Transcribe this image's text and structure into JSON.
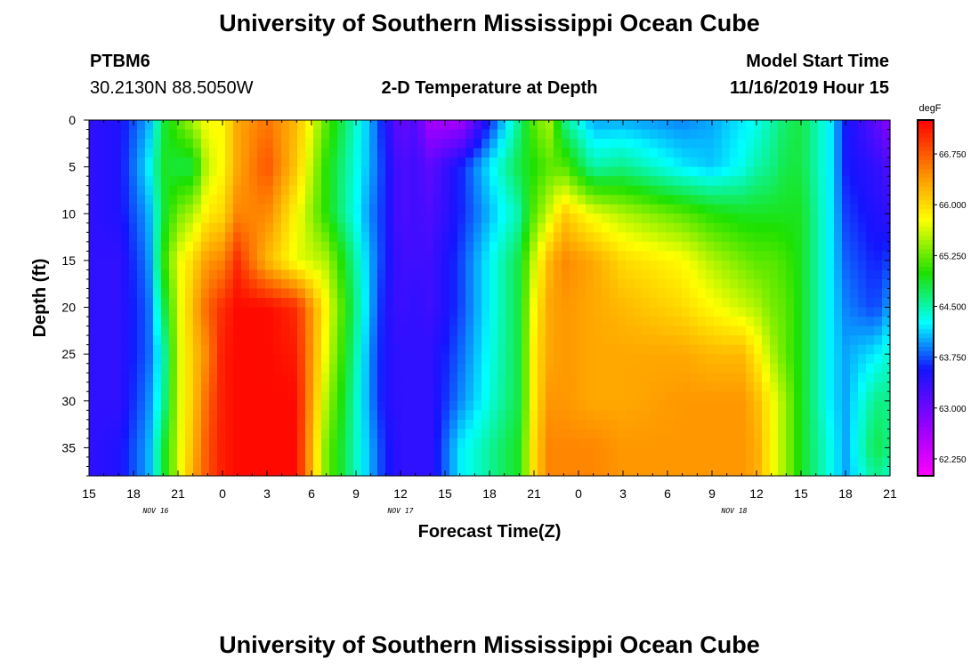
{
  "header": {
    "title": "University of Southern Mississippi Ocean Cube",
    "station": "PTBM6",
    "location": "30.2130N 88.5050W",
    "chart_title": "2-D Temperature at Depth",
    "model_label": "Model Start Time",
    "model_time": "11/16/2019 Hour 15"
  },
  "footer": {
    "title": "University of Southern Mississippi Ocean Cube"
  },
  "chart_data": {
    "type": "heatmap",
    "title": "2-D Temperature at Depth",
    "xlabel": "Forecast Time(Z)",
    "ylabel": "Depth (ft)",
    "x_tick_labels": [
      "15",
      "18",
      "21",
      "0",
      "3",
      "6",
      "9",
      "12",
      "15",
      "18",
      "21",
      "0",
      "3",
      "6",
      "9",
      "12",
      "15",
      "18",
      "21"
    ],
    "x_range_hours": [
      0,
      54
    ],
    "date_labels": [
      {
        "label": "NOV 16",
        "hour": 4.5
      },
      {
        "label": "NOV 17",
        "hour": 21
      },
      {
        "label": "NOV 18",
        "hour": 43.5
      }
    ],
    "y_ticks": [
      0,
      5,
      10,
      15,
      20,
      25,
      30,
      35
    ],
    "y_tick_labels": [
      "0",
      "5",
      "10",
      "15",
      "20",
      "25",
      "30",
      "35"
    ],
    "ylim": [
      0,
      38
    ],
    "colorbar": {
      "unit": "degF",
      "range": [
        62.0,
        67.25
      ],
      "tick_values": [
        66.75,
        66.0,
        65.25,
        64.5,
        63.75,
        63.0,
        62.25
      ],
      "tick_labels": [
        "66.750",
        "66.000",
        "65.250",
        "64.500",
        "63.750",
        "63.000",
        "62.250"
      ]
    },
    "temperature_profile": {
      "hours": [
        0,
        2,
        4,
        5,
        6,
        7,
        8,
        9,
        10,
        12,
        14,
        16,
        19,
        20,
        21,
        22,
        23,
        25,
        29,
        30,
        31,
        32,
        34,
        36,
        40,
        42,
        44,
        45,
        46,
        47,
        48,
        50,
        51,
        53,
        54
      ],
      "depths": [
        0,
        5,
        10,
        15,
        20,
        25,
        30,
        35,
        38
      ],
      "values_degF": [
        [
          63.4,
          63.4,
          63.4,
          63.4,
          63.4,
          63.4,
          63.4,
          63.4,
          63.4
        ],
        [
          63.5,
          63.5,
          63.5,
          63.4,
          63.4,
          63.4,
          63.4,
          63.5,
          63.5
        ],
        [
          64.0,
          64.2,
          64.0,
          63.9,
          63.8,
          63.8,
          63.9,
          64.0,
          64.0
        ],
        [
          64.8,
          64.9,
          64.8,
          65.0,
          64.7,
          64.4,
          64.5,
          64.8,
          64.8
        ],
        [
          65.2,
          64.8,
          65.3,
          65.7,
          65.6,
          65.6,
          65.6,
          65.6,
          65.6
        ],
        [
          65.5,
          64.8,
          65.5,
          66.0,
          66.2,
          66.1,
          66.1,
          66.2,
          66.3
        ],
        [
          65.8,
          65.6,
          65.9,
          66.4,
          66.7,
          66.5,
          66.7,
          66.8,
          66.8
        ],
        [
          65.8,
          65.8,
          66.0,
          66.5,
          67.0,
          67.1,
          67.1,
          67.1,
          67.1
        ],
        [
          66.3,
          66.3,
          66.5,
          67.0,
          67.2,
          67.2,
          67.2,
          67.2,
          67.2
        ],
        [
          66.6,
          66.8,
          66.5,
          66.2,
          67.2,
          67.2,
          67.2,
          67.2,
          67.2
        ],
        [
          66.2,
          66.1,
          65.8,
          65.7,
          67.0,
          67.1,
          67.2,
          67.2,
          67.2
        ],
        [
          65.2,
          65.0,
          65.0,
          65.5,
          65.8,
          65.7,
          65.5,
          65.3,
          65.3
        ],
        [
          64.0,
          64.0,
          63.9,
          64.0,
          64.0,
          63.9,
          63.9,
          64.0,
          64.0
        ],
        [
          63.5,
          63.6,
          63.6,
          63.6,
          63.5,
          63.5,
          63.5,
          63.6,
          63.6
        ],
        [
          63.0,
          63.2,
          63.2,
          63.3,
          63.3,
          63.4,
          63.4,
          63.4,
          63.4
        ],
        [
          63.2,
          63.3,
          63.3,
          63.3,
          63.4,
          63.4,
          63.4,
          63.4,
          63.4
        ],
        [
          62.6,
          63.1,
          63.2,
          63.3,
          63.3,
          63.4,
          63.4,
          63.4,
          63.4
        ],
        [
          62.6,
          63.6,
          63.6,
          63.7,
          63.7,
          63.8,
          63.9,
          64.2,
          64.2
        ],
        [
          64.6,
          64.8,
          64.5,
          64.8,
          64.8,
          64.8,
          64.8,
          64.9,
          64.9
        ],
        [
          65.2,
          65.0,
          65.2,
          65.6,
          65.8,
          65.9,
          65.9,
          66.0,
          66.0
        ],
        [
          65.5,
          65.2,
          65.6,
          66.2,
          66.3,
          66.3,
          66.4,
          66.5,
          66.5
        ],
        [
          64.6,
          65.2,
          66.1,
          66.5,
          66.4,
          66.4,
          66.4,
          66.5,
          66.5
        ],
        [
          64.0,
          64.5,
          65.7,
          66.3,
          66.3,
          66.3,
          66.3,
          66.5,
          66.5
        ],
        [
          64.0,
          64.6,
          65.5,
          66.0,
          66.2,
          66.3,
          66.3,
          66.4,
          66.4
        ],
        [
          63.9,
          64.2,
          65.2,
          65.8,
          66.0,
          66.3,
          66.4,
          66.4,
          66.4
        ],
        [
          64.0,
          64.1,
          65.0,
          65.5,
          65.8,
          66.2,
          66.4,
          66.4,
          66.4
        ],
        [
          64.2,
          64.3,
          64.9,
          65.3,
          65.6,
          66.2,
          66.4,
          66.4,
          66.4
        ],
        [
          64.3,
          64.5,
          64.9,
          65.2,
          65.5,
          65.9,
          66.2,
          66.3,
          66.3
        ],
        [
          64.5,
          64.6,
          64.9,
          65.2,
          65.3,
          65.5,
          65.8,
          65.8,
          65.8
        ],
        [
          64.7,
          64.8,
          64.9,
          65.1,
          65.2,
          65.2,
          65.4,
          65.4,
          65.4
        ],
        [
          64.8,
          64.8,
          64.9,
          64.9,
          64.9,
          64.9,
          64.9,
          64.9,
          64.9
        ],
        [
          64.2,
          64.2,
          64.2,
          64.2,
          64.2,
          64.2,
          64.2,
          64.3,
          64.3
        ],
        [
          63.6,
          63.6,
          63.7,
          63.8,
          63.9,
          64.0,
          64.0,
          64.0,
          64.0
        ],
        [
          63.1,
          63.4,
          63.5,
          63.6,
          63.7,
          64.2,
          64.6,
          64.8,
          64.6
        ],
        [
          62.8,
          63.2,
          63.4,
          63.7,
          64.0,
          64.4,
          64.6,
          64.6,
          64.4
        ]
      ]
    }
  }
}
